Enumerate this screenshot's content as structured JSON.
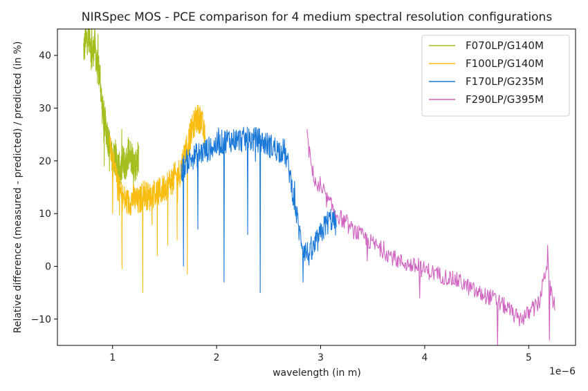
{
  "chart_data": {
    "type": "line",
    "title": "NIRSpec MOS - PCE comparison for 4 medium spectral resolution configurations",
    "xlabel": "wavelength (in m)",
    "ylabel": "Relative difference (measured - predicted) / predicted (in %)",
    "x_offset_label": "1e−6",
    "xlim": [
      0.47,
      5.45
    ],
    "ylim": [
      -15,
      45
    ],
    "x_ticks": [
      1,
      2,
      3,
      4,
      5
    ],
    "x_tick_labels": [
      "1",
      "2",
      "3",
      "4",
      "5"
    ],
    "y_ticks": [
      -10,
      0,
      10,
      20,
      30,
      40
    ],
    "y_tick_labels": [
      "−10",
      "0",
      "10",
      "20",
      "30",
      "40"
    ],
    "grid": false,
    "legend_position": "top-right",
    "series": [
      {
        "name": "F070LP/G140M",
        "color": "#a6bd1e",
        "x": [
          0.72,
          0.75,
          0.78,
          0.8,
          0.83,
          0.85,
          0.88,
          0.9,
          0.92,
          0.95,
          0.98,
          1.0,
          1.02,
          1.05,
          1.08,
          1.1,
          1.13,
          1.15,
          1.18,
          1.2,
          1.22,
          1.25
        ],
        "y": [
          41,
          43,
          44,
          40,
          42,
          38,
          36,
          30,
          28,
          25,
          22,
          20,
          21,
          19,
          18,
          20,
          19,
          22,
          21,
          20,
          19,
          21
        ],
        "spikes": [
          [
            0.74,
            47
          ],
          [
            0.8,
            46
          ],
          [
            0.86,
            44
          ],
          [
            0.92,
            19
          ],
          [
            0.97,
            18
          ]
        ]
      },
      {
        "name": "F100LP/G140M",
        "color": "#f8bd10",
        "x": [
          0.97,
          1.0,
          1.05,
          1.1,
          1.15,
          1.2,
          1.25,
          1.3,
          1.35,
          1.4,
          1.45,
          1.5,
          1.55,
          1.6,
          1.65,
          1.7,
          1.75,
          1.8,
          1.85,
          1.89
        ],
        "y": [
          25,
          20,
          15,
          13,
          12,
          13,
          12,
          14,
          13,
          14,
          14,
          15,
          16,
          17,
          18,
          22,
          25,
          28,
          28,
          24
        ],
        "spikes": [
          [
            1.0,
            10
          ],
          [
            1.09,
            -0.5
          ],
          [
            1.29,
            -5
          ],
          [
            1.43,
            2
          ],
          [
            1.53,
            4
          ],
          [
            1.62,
            5
          ],
          [
            1.72,
            -1.5
          ]
        ]
      },
      {
        "name": "F170LP/G235M",
        "color": "#1a78d8",
        "x": [
          1.66,
          1.72,
          1.8,
          1.9,
          2.0,
          2.1,
          2.2,
          2.3,
          2.4,
          2.5,
          2.6,
          2.65,
          2.7,
          2.75,
          2.8,
          2.85,
          2.9,
          2.95,
          3.0,
          3.05,
          3.1,
          3.15
        ],
        "y": [
          18,
          20,
          21,
          22,
          23,
          24,
          24,
          24,
          24,
          23,
          22,
          22,
          18,
          12,
          6,
          3,
          2,
          4,
          6,
          8,
          9,
          8
        ],
        "spikes": [
          [
            1.68,
            0
          ],
          [
            1.82,
            7
          ],
          [
            2.07,
            -3
          ],
          [
            2.3,
            6
          ],
          [
            2.42,
            -5
          ],
          [
            2.83,
            -3
          ]
        ]
      },
      {
        "name": "F290LP/G395M",
        "color": "#d062c0",
        "x": [
          2.87,
          2.92,
          2.97,
          3.05,
          3.15,
          3.3,
          3.45,
          3.6,
          3.75,
          3.9,
          4.05,
          4.2,
          4.35,
          4.5,
          4.65,
          4.8,
          4.9,
          5.0,
          5.1,
          5.15,
          5.18,
          5.22,
          5.25
        ],
        "y": [
          24,
          18,
          15,
          13,
          10,
          7,
          5,
          3,
          1,
          0,
          -1,
          -2,
          -3,
          -5,
          -6,
          -8,
          -10,
          -9,
          -7,
          -2,
          1,
          -6,
          -7
        ],
        "spikes": [
          [
            2.87,
            26
          ],
          [
            3.45,
            1
          ],
          [
            3.95,
            -6
          ],
          [
            4.7,
            -15
          ],
          [
            4.95,
            -11
          ],
          [
            5.18,
            4
          ],
          [
            5.2,
            -14
          ]
        ]
      }
    ]
  }
}
